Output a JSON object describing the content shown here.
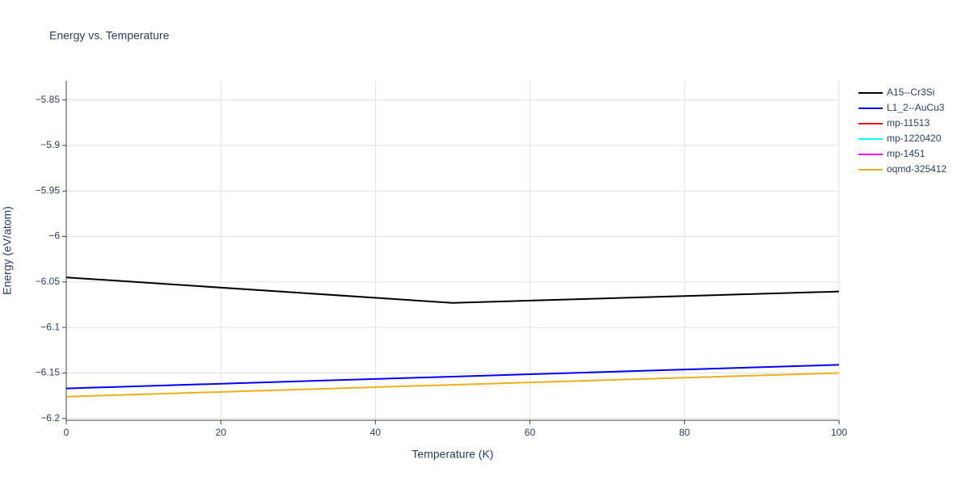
{
  "chart_data": {
    "type": "line",
    "title": "Energy vs. Temperature",
    "x_label": "Temperature (K)",
    "y_label": "Energy (eV/atom)",
    "x": [
      0,
      50,
      100
    ],
    "series": [
      {
        "name": "A15--Cr3Si",
        "color": "#000000",
        "values": [
          -6.045,
          -6.073,
          -6.0605
        ]
      },
      {
        "name": "L1_2--AuCu3",
        "color": "#0000ff",
        "values": [
          -6.167,
          -6.154,
          -6.141
        ]
      },
      {
        "name": "mp-11513",
        "color": "#ff0000",
        "values": [
          null,
          null,
          null
        ]
      },
      {
        "name": "mp-1220420",
        "color": "#00ffff",
        "values": [
          null,
          null,
          null
        ]
      },
      {
        "name": "mp-1451",
        "color": "#ff00ff",
        "values": [
          null,
          null,
          null
        ]
      },
      {
        "name": "oqmd-325412",
        "color": "#ecb01f",
        "values": [
          -6.176,
          -6.163,
          -6.15
        ]
      }
    ],
    "xlim": [
      0,
      100
    ],
    "xticks": [
      0,
      20,
      40,
      60,
      80,
      100
    ],
    "ylim": [
      -6.202,
      -5.829
    ],
    "yticks": [
      {
        "value": -6.2,
        "label": "−6.2"
      },
      {
        "value": -6.15,
        "label": "−6.15"
      },
      {
        "value": -6.1,
        "label": "−6.1"
      },
      {
        "value": -6.05,
        "label": "−6.05"
      },
      {
        "value": -6,
        "label": "−6"
      },
      {
        "value": -5.95,
        "label": "−5.95"
      },
      {
        "value": -5.9,
        "label": "−5.9"
      },
      {
        "value": -5.85,
        "label": "−5.85"
      }
    ],
    "grid": true,
    "legend": "right"
  }
}
